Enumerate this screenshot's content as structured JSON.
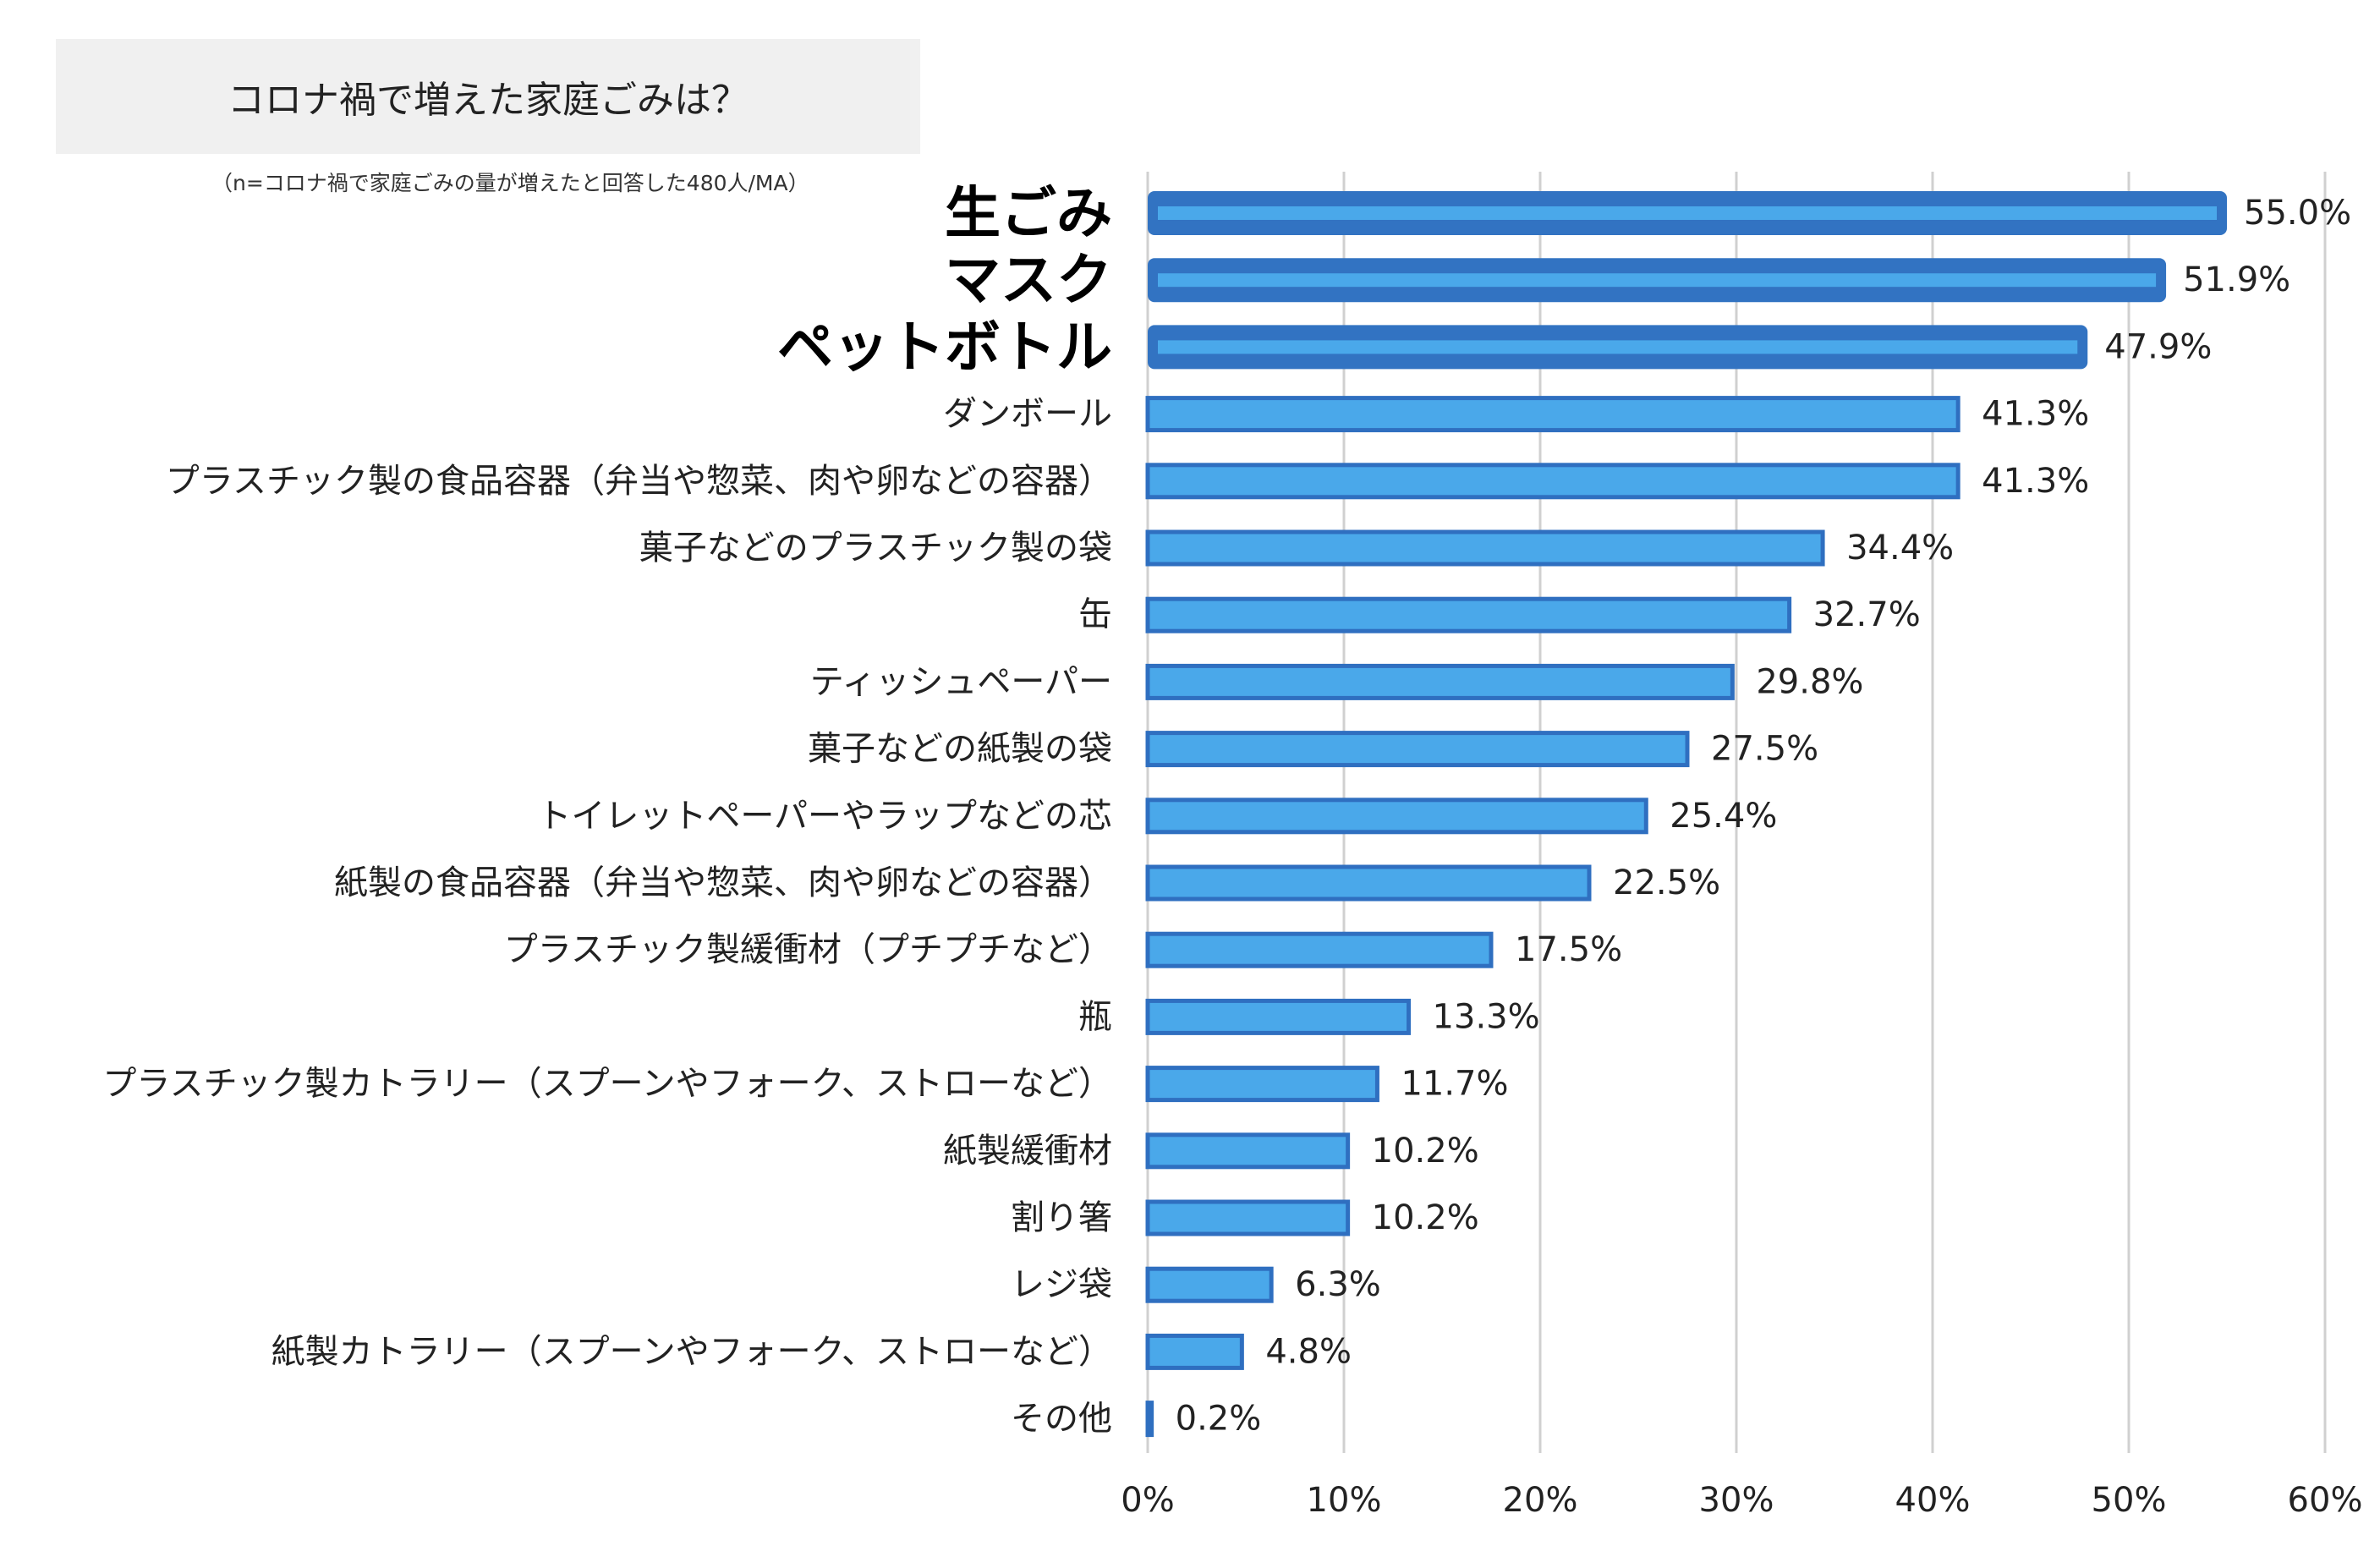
{
  "chart_data": {
    "type": "bar",
    "orientation": "horizontal",
    "title": "コロナ禍で増えた家庭ごみは？",
    "subtitle": "（n=コロナ禍で家庭ごみの量が増えたと回答した480人/MA）",
    "categories": [
      "生ごみ",
      "マスク",
      "ペットボトル",
      "ダンボール",
      "プラスチック製の食品容器（弁当や惣菜、肉や卵などの容器）",
      "菓子などのプラスチック製の袋",
      "缶",
      "ティッシュペーパー",
      "菓子などの紙製の袋",
      "トイレットペーパーやラップなどの芯",
      "紙製の食品容器（弁当や惣菜、肉や卵などの容器）",
      "プラスチック製緩衝材（プチプチなど）",
      "瓶",
      "プラスチック製カトラリー（スプーンやフォーク、ストローなど）",
      "紙製緩衝材",
      "割り箸",
      "レジ袋",
      "紙製カトラリー（スプーンやフォーク、ストローなど）",
      "その他"
    ],
    "values": [
      55.0,
      51.9,
      47.9,
      41.3,
      41.3,
      34.4,
      32.7,
      29.8,
      27.5,
      25.4,
      22.5,
      17.5,
      13.3,
      11.7,
      10.2,
      10.2,
      6.3,
      4.8,
      0.2
    ],
    "value_labels": [
      "55.0%",
      "51.9%",
      "47.9%",
      "41.3%",
      "41.3%",
      "34.4%",
      "32.7%",
      "29.8%",
      "27.5%",
      "25.4%",
      "22.5%",
      "17.5%",
      "13.3%",
      "11.7%",
      "10.2%",
      "10.2%",
      "6.3%",
      "4.8%",
      "0.2%"
    ],
    "highlight_top": 3,
    "xlim": [
      0,
      60
    ],
    "xticks": [
      0,
      10,
      20,
      30,
      40,
      50,
      60
    ],
    "xtick_labels": [
      "0%",
      "10%",
      "20%",
      "30%",
      "40%",
      "50%",
      "60%"
    ],
    "grid": true,
    "colors": {
      "bar_fill": "#4aa8ea",
      "bar_border": "#2f6fc0",
      "highlight_fill": "#3273c2",
      "highlight_inner": "#4aa8ea",
      "grid": "#d0d0d0",
      "text": "#222222"
    }
  }
}
